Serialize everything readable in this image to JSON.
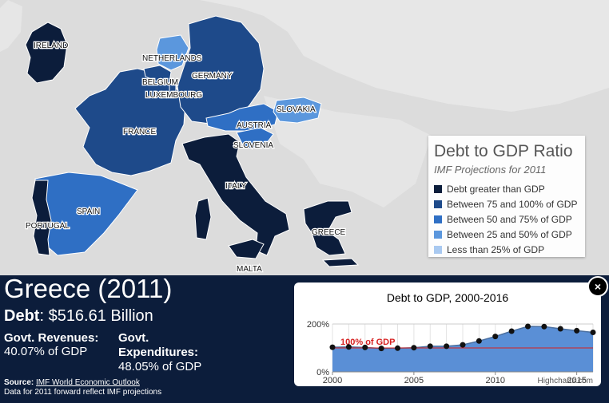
{
  "map": {
    "labels": {
      "ireland": "IRELAND",
      "netherlands": "NETHERLANDS",
      "belgium": "BELGIUM",
      "germany": "GERMANY",
      "luxembourg": "LUXEMBOURG",
      "slovakia": "SLOVAKIA",
      "austria": "AUSTRIA",
      "france": "FRANCE",
      "slovenia": "SLOVENIA",
      "italy": "ITALY",
      "spain": "SPAIN",
      "portugal": "PORTUGAL",
      "greece": "GREECE",
      "malta": "MALTA"
    }
  },
  "legend": {
    "title": "Debt to GDP Ratio",
    "subtitle": "IMF Projections for 2011",
    "items": [
      {
        "label": "Debt greater than GDP",
        "color": "#0c1d3b"
      },
      {
        "label": "Between 75 and 100% of GDP",
        "color": "#1e4a8a"
      },
      {
        "label": "Between 50 and 75% of GDP",
        "color": "#2f6fc4"
      },
      {
        "label": "Between 25 and 50% of GDP",
        "color": "#5b97dd"
      },
      {
        "label": "Less than 25% of GDP",
        "color": "#a9c9f0"
      }
    ]
  },
  "panel": {
    "country_name": "Greece (2011)",
    "debt_label": "Debt",
    "debt_value": ": $516.61 Billion",
    "revenues_label": "Govt. Revenues:",
    "revenues_value": "40.07% of GDP",
    "expenditures_label": "Govt. Expenditures:",
    "expenditures_value": "48.05% of GDP",
    "source_label": "Source:",
    "source_link": "IMF World Economic Outlook",
    "note": "Data for 2011 forward reflect IMF projections"
  },
  "close_icon": "×",
  "chart_data": {
    "type": "area",
    "title": "Debt to GDP, 2000-2016",
    "credit": "Highcharts.com",
    "x": [
      2000,
      2001,
      2002,
      2003,
      2004,
      2005,
      2006,
      2007,
      2008,
      2009,
      2010,
      2011,
      2012,
      2013,
      2014,
      2015,
      2016
    ],
    "values": [
      103,
      104,
      102,
      98,
      99,
      101,
      107,
      107,
      113,
      129,
      148,
      170,
      190,
      189,
      180,
      172,
      165
    ],
    "xlim": [
      2000,
      2016
    ],
    "ylim": [
      0,
      200
    ],
    "xticks": [
      "2000",
      "2005",
      "2010",
      "2015"
    ],
    "yticks": [
      "0%",
      "200%"
    ],
    "plot_line": {
      "value": 100,
      "label": "100% of GDP",
      "color": "#d62020"
    },
    "fill_color": "#5a8fd6",
    "grid": true
  }
}
